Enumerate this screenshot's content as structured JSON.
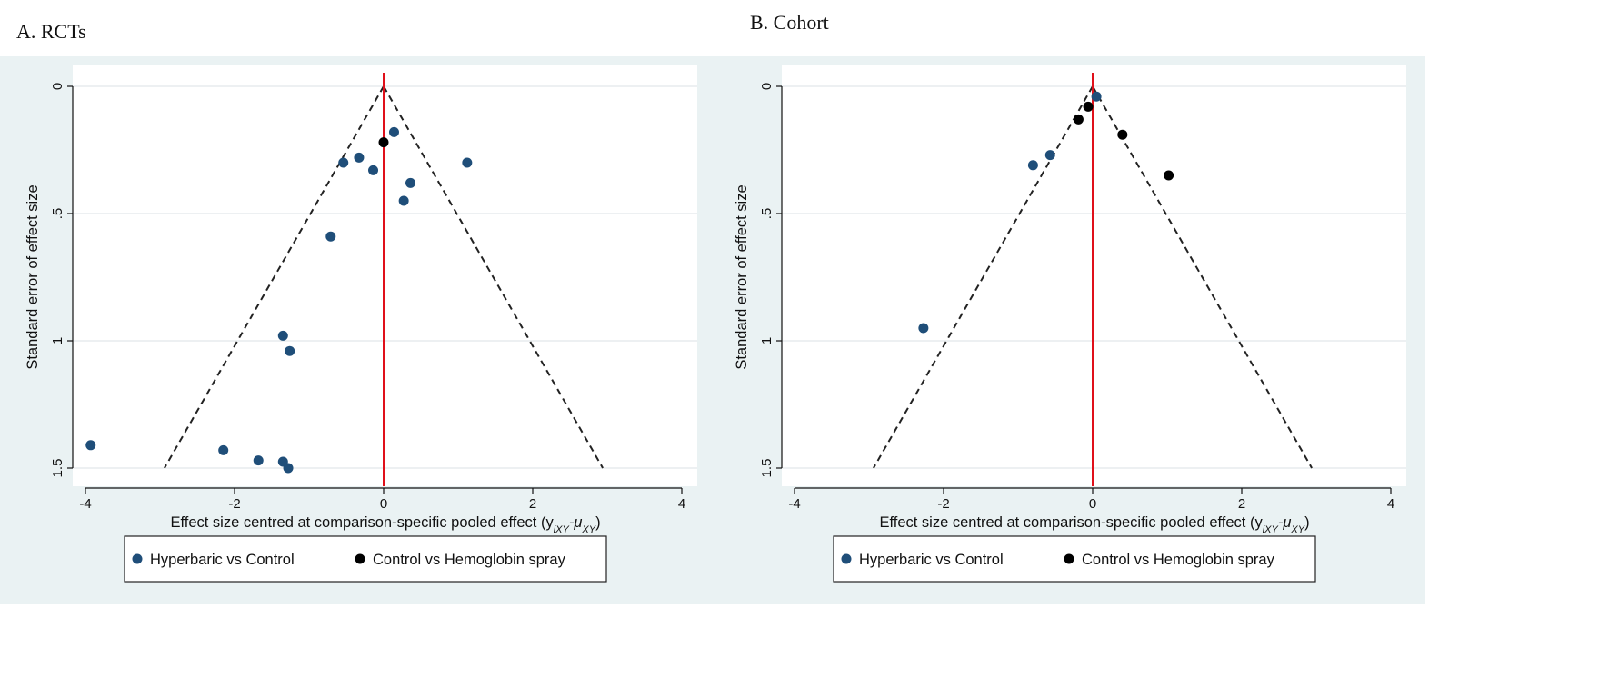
{
  "panels": [
    {
      "id": "a",
      "title": "A. RCTs"
    },
    {
      "id": "b",
      "title": "B. Cohort"
    }
  ],
  "colors": {
    "hyperbaric": "#1f4e79",
    "hemoglobin": "#000000",
    "null_line": "#e0101a",
    "funnel": "#222222",
    "grid": "#e2e8ea",
    "plot_bg": "#ffffff",
    "outer_bg": "#eaf2f3"
  },
  "chart_data": [
    {
      "type": "scatter",
      "title": "A. RCTs",
      "xlabel": "Effect size centred at comparison-specific pooled effect (y",
      "xlabel_sub1": "iXY",
      "xlabel_mid": "-μ",
      "xlabel_sub2": "XY",
      "xlabel_end": ")",
      "ylabel": "Standard error of effect size",
      "xlim": [
        -4,
        4
      ],
      "ylim": [
        0,
        1.5
      ],
      "y_reversed": true,
      "x_ticks": [
        -4,
        -2,
        0,
        2,
        4
      ],
      "x_tick_labels": [
        "-4",
        "-2",
        "0",
        "2",
        "4"
      ],
      "y_ticks": [
        0,
        0.5,
        1,
        1.5
      ],
      "y_tick_labels": [
        "0",
        ".5",
        "1",
        "1.5"
      ],
      "grid": "horizontal",
      "funnel": {
        "apex": [
          0,
          0
        ],
        "base_se": 1.5,
        "half_width_at_base": 2.94
      },
      "null_line_x": 0,
      "legend_position": "bottom",
      "series": [
        {
          "name": "Hyperbaric vs Control",
          "color_key": "hyperbaric",
          "points": [
            {
              "x": 0.14,
              "y": 0.18
            },
            {
              "x": -0.33,
              "y": 0.28
            },
            {
              "x": -0.54,
              "y": 0.3
            },
            {
              "x": -0.14,
              "y": 0.33
            },
            {
              "x": 1.12,
              "y": 0.3
            },
            {
              "x": 0.36,
              "y": 0.38
            },
            {
              "x": 0.27,
              "y": 0.45
            },
            {
              "x": -0.71,
              "y": 0.59
            },
            {
              "x": -1.35,
              "y": 0.98
            },
            {
              "x": -1.26,
              "y": 1.04
            },
            {
              "x": -3.93,
              "y": 1.41
            },
            {
              "x": -2.15,
              "y": 1.43
            },
            {
              "x": -1.68,
              "y": 1.47
            },
            {
              "x": -1.35,
              "y": 1.475
            },
            {
              "x": -1.28,
              "y": 1.5
            }
          ]
        },
        {
          "name": "Control vs Hemoglobin spray",
          "color_key": "hemoglobin",
          "points": [
            {
              "x": 0.0,
              "y": 0.22
            }
          ]
        }
      ]
    },
    {
      "type": "scatter",
      "title": "B. Cohort",
      "xlabel": "Effect size centred at comparison-specific pooled effect (y",
      "xlabel_sub1": "iXY",
      "xlabel_mid": "-μ",
      "xlabel_sub2": "XY",
      "xlabel_end": ")",
      "ylabel": "Standard error of effect size",
      "xlim": [
        -4,
        4
      ],
      "ylim": [
        0,
        1.5
      ],
      "y_reversed": true,
      "x_ticks": [
        -4,
        -2,
        0,
        2,
        4
      ],
      "x_tick_labels": [
        "-4",
        "-2",
        "0",
        "2",
        "4"
      ],
      "y_ticks": [
        0,
        0.5,
        1,
        1.5
      ],
      "y_tick_labels": [
        "0",
        ".5",
        "1",
        "1.5"
      ],
      "grid": "horizontal",
      "funnel": {
        "apex": [
          0,
          0
        ],
        "base_se": 1.5,
        "half_width_at_base": 2.94
      },
      "null_line_x": 0,
      "legend_position": "bottom",
      "series": [
        {
          "name": "Hyperbaric vs Control",
          "color_key": "hyperbaric",
          "points": [
            {
              "x": 0.05,
              "y": 0.04
            },
            {
              "x": -0.57,
              "y": 0.27
            },
            {
              "x": -0.8,
              "y": 0.31
            },
            {
              "x": -2.27,
              "y": 0.95
            }
          ]
        },
        {
          "name": "Control vs Hemoglobin spray",
          "color_key": "hemoglobin",
          "points": [
            {
              "x": -0.06,
              "y": 0.08
            },
            {
              "x": -0.19,
              "y": 0.13
            },
            {
              "x": 0.4,
              "y": 0.19
            },
            {
              "x": 1.02,
              "y": 0.35
            }
          ]
        }
      ]
    }
  ]
}
